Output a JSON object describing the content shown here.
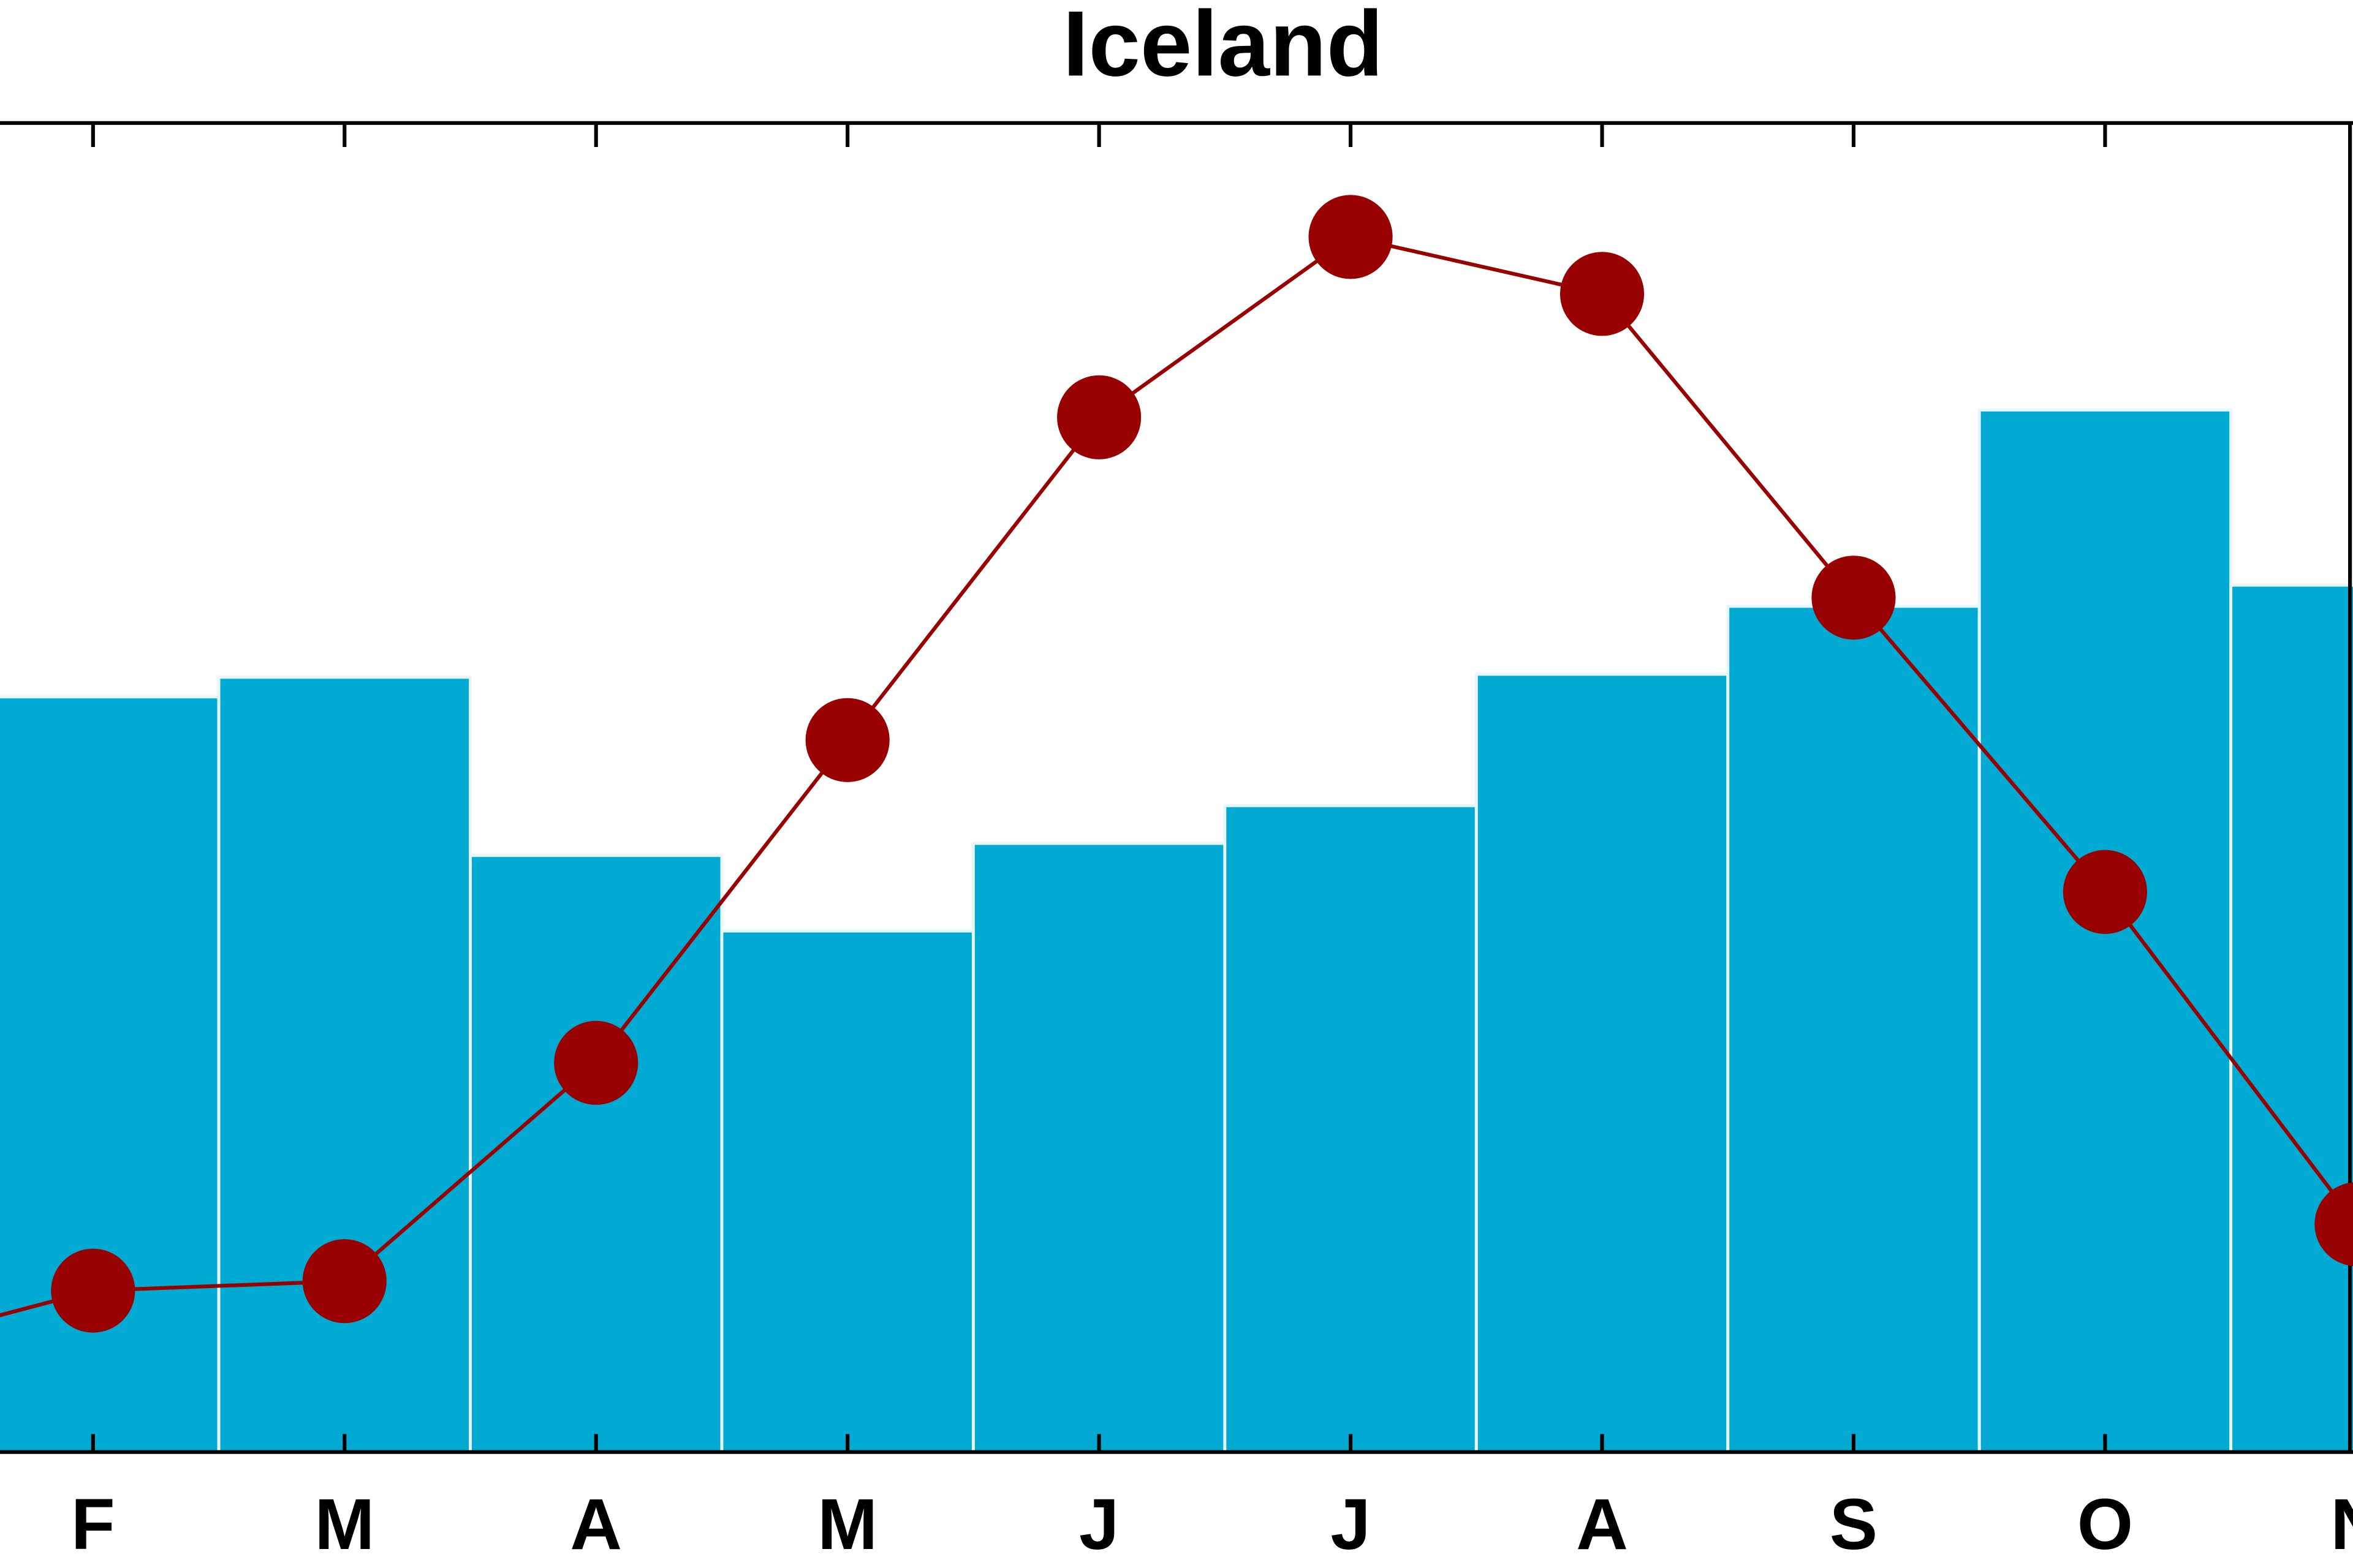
{
  "chart_data": {
    "type": "bar-line",
    "title": "Iceland",
    "categories": [
      null,
      "F",
      "M",
      "A",
      "M",
      "J",
      "J",
      "A",
      "S",
      "O",
      "N"
    ],
    "series": [
      {
        "type": "bar",
        "color": "#00aad2",
        "values": [
          null,
          50,
          51.3,
          39.5,
          34.5,
          40.3,
          42.8,
          51.5,
          56,
          69,
          57.4
        ]
      },
      {
        "type": "line",
        "axis": "y2",
        "color": "#990000",
        "values": [
          -1.0,
          -0.3,
          -0.2,
          2.1,
          5.5,
          8.9,
          10.8,
          10.2,
          7.0,
          3.9,
          0.4
        ]
      }
    ],
    "ylim": [
      0,
      88
    ],
    "y2lim": [
      -2,
      12
    ]
  }
}
